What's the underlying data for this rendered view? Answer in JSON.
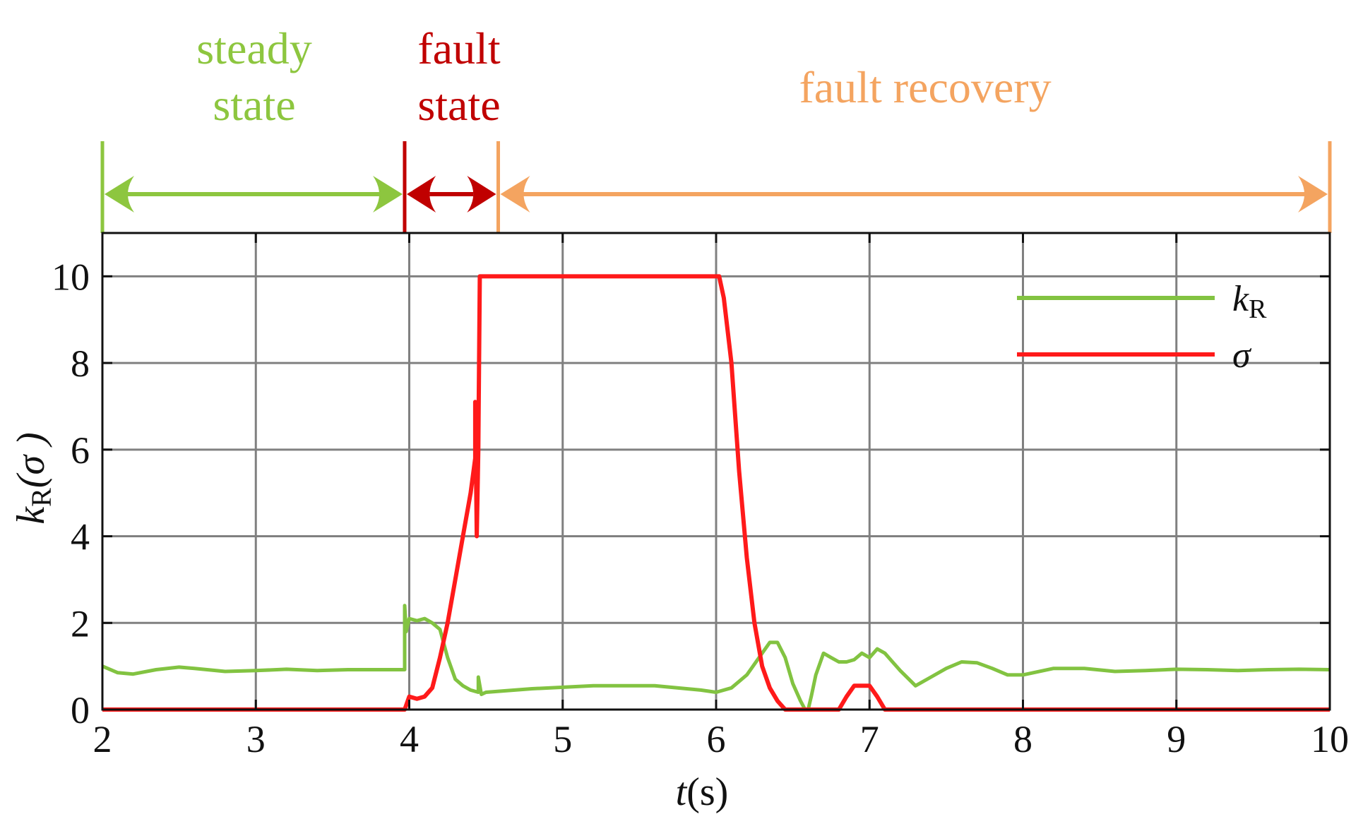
{
  "colors": {
    "steady": "#8dc63f",
    "fault": "#c00000",
    "recovery": "#f4a460",
    "kR_line": "#82c341",
    "sigma_line": "#ff1a1a",
    "grid": "#808080",
    "axes": "#111111"
  },
  "phases": [
    {
      "key": "steady",
      "lines": [
        "steady",
        "state"
      ],
      "t_start": 2.0,
      "t_end": 3.97
    },
    {
      "key": "fault",
      "lines": [
        "fault",
        "state"
      ],
      "t_start": 3.97,
      "t_end": 4.58
    },
    {
      "key": "recovery",
      "lines": [
        "fault recovery"
      ],
      "t_start": 4.58,
      "t_end": 10.0
    }
  ],
  "chart_data": {
    "type": "line",
    "title": "",
    "xlabel": {
      "var": "t",
      "unit": "(s)"
    },
    "ylabel": {
      "main": "k",
      "sub": "R",
      "paren": "(σ )"
    },
    "xlim": [
      2,
      10
    ],
    "ylim": [
      0,
      11
    ],
    "xticks": [
      2,
      3,
      4,
      5,
      6,
      7,
      8,
      9,
      10
    ],
    "yticks": [
      0,
      2,
      4,
      6,
      8,
      10
    ],
    "grid": true,
    "legend_position": "top-right",
    "series": [
      {
        "key": "kR",
        "name": {
          "main": "k",
          "sub": "R"
        },
        "color": "#82c341",
        "x": [
          2.0,
          2.1,
          2.2,
          2.35,
          2.5,
          2.6,
          2.8,
          3.0,
          3.2,
          3.4,
          3.6,
          3.8,
          3.97,
          3.97,
          3.98,
          4.0,
          4.05,
          4.1,
          4.15,
          4.2,
          4.25,
          4.3,
          4.35,
          4.4,
          4.45,
          4.45,
          4.47,
          4.5,
          4.8,
          5.2,
          5.6,
          5.9,
          6.0,
          6.1,
          6.2,
          6.3,
          6.35,
          6.4,
          6.45,
          6.5,
          6.55,
          6.58,
          6.6,
          6.62,
          6.65,
          6.7,
          6.75,
          6.8,
          6.85,
          6.9,
          6.95,
          7.0,
          7.05,
          7.1,
          7.15,
          7.2,
          7.3,
          7.4,
          7.5,
          7.6,
          7.7,
          7.8,
          7.9,
          8.0,
          8.2,
          8.4,
          8.6,
          8.8,
          9.0,
          9.2,
          9.4,
          9.6,
          9.8,
          10.0
        ],
        "y": [
          1.0,
          0.85,
          0.82,
          0.92,
          0.98,
          0.95,
          0.88,
          0.9,
          0.93,
          0.9,
          0.92,
          0.92,
          0.92,
          2.4,
          1.8,
          2.1,
          2.05,
          2.1,
          2.0,
          1.85,
          1.2,
          0.7,
          0.55,
          0.45,
          0.4,
          0.75,
          0.35,
          0.4,
          0.48,
          0.55,
          0.55,
          0.45,
          0.4,
          0.5,
          0.8,
          1.3,
          1.55,
          1.55,
          1.2,
          0.6,
          0.2,
          0.0,
          0.0,
          0.3,
          0.8,
          1.3,
          1.2,
          1.1,
          1.1,
          1.15,
          1.3,
          1.2,
          1.4,
          1.3,
          1.1,
          0.9,
          0.55,
          0.75,
          0.95,
          1.1,
          1.08,
          0.95,
          0.8,
          0.8,
          0.95,
          0.95,
          0.88,
          0.9,
          0.93,
          0.92,
          0.9,
          0.92,
          0.93,
          0.92
        ]
      },
      {
        "key": "sigma",
        "name": {
          "main": "σ",
          "sub": ""
        },
        "color": "#ff1a1a",
        "x": [
          2.0,
          3.97,
          3.97,
          4.0,
          4.05,
          4.1,
          4.15,
          4.2,
          4.25,
          4.3,
          4.35,
          4.4,
          4.43,
          4.43,
          4.44,
          4.45,
          4.46,
          4.46,
          5.0,
          5.5,
          6.02,
          6.05,
          6.1,
          6.15,
          6.2,
          6.25,
          6.3,
          6.35,
          6.4,
          6.45,
          6.8,
          6.85,
          6.9,
          6.95,
          7.0,
          7.05,
          7.1,
          10.0
        ],
        "y": [
          0.0,
          0.0,
          0.0,
          0.3,
          0.25,
          0.3,
          0.5,
          1.2,
          2.0,
          3.0,
          4.0,
          5.0,
          5.8,
          7.1,
          4.0,
          6.0,
          10.0,
          10.0,
          10.0,
          10.0,
          10.0,
          9.5,
          8.0,
          5.5,
          3.5,
          2.0,
          1.0,
          0.5,
          0.2,
          0.0,
          0.0,
          0.3,
          0.55,
          0.55,
          0.55,
          0.3,
          0.0,
          0.0
        ]
      }
    ]
  }
}
